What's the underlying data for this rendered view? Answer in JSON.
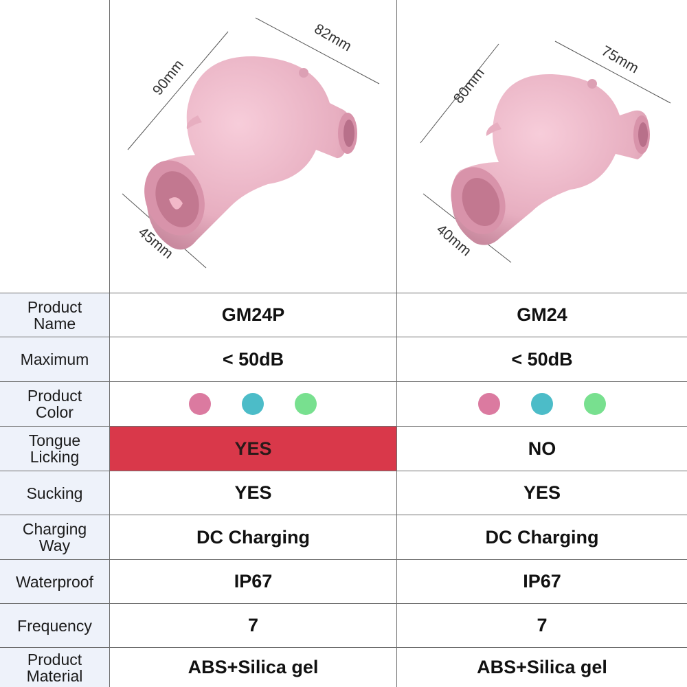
{
  "products": [
    {
      "dimensions": {
        "height": "90mm",
        "length": "82mm",
        "mouth": "45mm"
      },
      "name": "GM24P",
      "noise": "< 50dB",
      "tongue": "YES",
      "sucking": "YES",
      "charging": "DC Charging",
      "waterproof": "IP67",
      "frequency": "7",
      "material": "ABS+Silica gel"
    },
    {
      "dimensions": {
        "height": "80mm",
        "length": "75mm",
        "mouth": "40mm"
      },
      "name": "GM24",
      "noise": "< 50dB",
      "tongue": "NO",
      "sucking": "YES",
      "charging": "DC Charging",
      "waterproof": "IP67",
      "frequency": "7",
      "material": "ABS+Silica gel"
    }
  ],
  "rows": {
    "name": "Product\nName",
    "noise": "Maximum",
    "color": "Product\nColor",
    "tongue": "Tongue\nLicking",
    "sucking": "Sucking",
    "charging": "Charging\nWay",
    "waterproof": "Waterproof",
    "frequency": "Frequency",
    "material": "Product\nMaterial"
  },
  "colors": {
    "swatches": [
      "#db7aa0",
      "#4cbcc8",
      "#78e08f"
    ],
    "highlight": "#d9384a",
    "label_bg": "#eef2fa",
    "product_pink": "#e7aec0"
  }
}
